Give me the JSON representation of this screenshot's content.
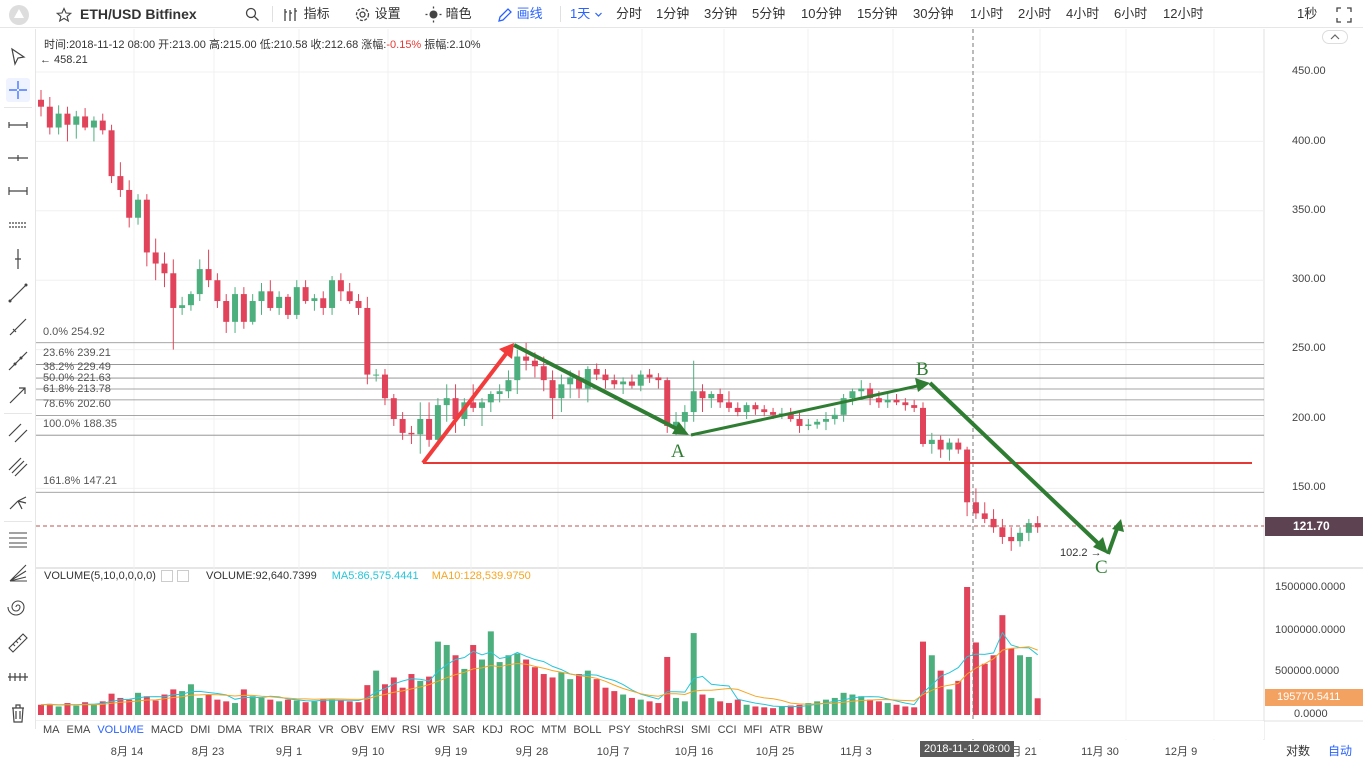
{
  "header": {
    "symbol": "ETH/USD",
    "exchange": "Bitfinex",
    "indicators_label": "指标",
    "settings_label": "设置",
    "theme_label": "暗色",
    "draw_label": "画线",
    "current_interval": "1天",
    "intervals": [
      "分时",
      "1分钟",
      "3分钟",
      "5分钟",
      "10分钟",
      "15分钟",
      "30分钟",
      "1小时",
      "2小时",
      "4小时",
      "6小时",
      "12小时"
    ],
    "right_interval": "1秒"
  },
  "ohlc": {
    "time_label": "时间:",
    "time": "2018-11-12 08:00",
    "open_label": "开:",
    "open": "213.00",
    "high_label": "高:",
    "high": "215.00",
    "low_label": "低:",
    "low": "210.58",
    "close_label": "收:",
    "close": "212.68",
    "change_label": "涨幅:",
    "change": "-0.15%",
    "amp_label": "振幅:",
    "amp": "2.10%"
  },
  "max_label": "← 458.21",
  "low_label": "102.2 →",
  "current_price": "121.70",
  "price_axis": [
    "450.00",
    "400.00",
    "350.00",
    "300.00",
    "250.00",
    "200.00",
    "150.00"
  ],
  "volume_axis": [
    "1500000.0000",
    "1000000.0000",
    "500000.0000",
    "0.0000"
  ],
  "current_volume": "195770.5411",
  "volume_info": {
    "title": "VOLUME(5,10,0,0,0,0)",
    "volume_text": "VOLUME:92,640.7399",
    "ma5_text": "MA5:86,575.4441",
    "ma10_text": "MA10:128,539.9750"
  },
  "fib_levels": [
    "0.0% 254.92",
    "23.6% 239.21",
    "38.2% 229.49",
    "50.0% 221.63",
    "61.8% 213.78",
    "78.6% 202.60",
    "100.0% 188.35",
    "161.8% 147.21"
  ],
  "wave_labels": [
    "A",
    "B",
    "C"
  ],
  "indicator_tabs": [
    "MA",
    "EMA",
    "VOLUME",
    "MACD",
    "DMI",
    "DMA",
    "TRIX",
    "BRAR",
    "VR",
    "OBV",
    "EMV",
    "RSI",
    "WR",
    "SAR",
    "KDJ",
    "ROC",
    "MTM",
    "BOLL",
    "PSY",
    "StochRSI",
    "SMI",
    "CCI",
    "MFI",
    "ATR",
    "BBW"
  ],
  "selected_indicator": "VOLUME",
  "time_axis": [
    "8月 14",
    "8月 23",
    "9月 1",
    "9月 10",
    "9月 19",
    "9月 28",
    "10月 7",
    "10月 16",
    "10月 25",
    "11月 3",
    "11月 21",
    "11月 30",
    "12月 9"
  ],
  "crosshair_date": "2018-11-12 08:00",
  "log_label": "对数",
  "auto_label": "自动",
  "colors": {
    "up": "#4caf7d",
    "down": "#e0435a",
    "accent": "#2962ff",
    "wave": "#2e7d32",
    "impulse": "#f23c3c",
    "ma5": "#26c6da",
    "ma10": "#f5a623"
  },
  "chart_data": {
    "type": "candlestick",
    "ylim": [
      90,
      470
    ],
    "candles": [
      [
        430,
        437,
        418,
        425
      ],
      [
        425,
        432,
        405,
        410
      ],
      [
        410,
        426,
        405,
        420
      ],
      [
        420,
        425,
        400,
        412
      ],
      [
        412,
        422,
        402,
        418
      ],
      [
        418,
        424,
        408,
        410
      ],
      [
        410,
        418,
        400,
        415
      ],
      [
        415,
        420,
        405,
        408
      ],
      [
        408,
        412,
        370,
        375
      ],
      [
        375,
        385,
        360,
        365
      ],
      [
        365,
        372,
        338,
        345
      ],
      [
        345,
        362,
        340,
        358
      ],
      [
        358,
        362,
        310,
        320
      ],
      [
        320,
        330,
        300,
        312
      ],
      [
        312,
        320,
        295,
        305
      ],
      [
        305,
        315,
        250,
        280
      ],
      [
        280,
        288,
        275,
        282
      ],
      [
        282,
        292,
        278,
        290
      ],
      [
        290,
        315,
        285,
        308
      ],
      [
        308,
        322,
        295,
        300
      ],
      [
        300,
        305,
        280,
        285
      ],
      [
        285,
        290,
        262,
        270
      ],
      [
        270,
        295,
        262,
        290
      ],
      [
        290,
        295,
        265,
        270
      ],
      [
        270,
        290,
        268,
        285
      ],
      [
        285,
        298,
        275,
        292
      ],
      [
        292,
        300,
        278,
        280
      ],
      [
        280,
        292,
        275,
        288
      ],
      [
        288,
        290,
        272,
        275
      ],
      [
        275,
        300,
        272,
        295
      ],
      [
        295,
        300,
        283,
        285
      ],
      [
        285,
        290,
        278,
        287
      ],
      [
        287,
        292,
        275,
        280
      ],
      [
        280,
        303,
        275,
        300
      ],
      [
        300,
        305,
        285,
        292
      ],
      [
        292,
        298,
        283,
        285
      ],
      [
        285,
        290,
        275,
        280
      ],
      [
        280,
        288,
        225,
        232
      ],
      [
        232,
        236,
        227,
        232
      ],
      [
        232,
        236,
        210,
        215
      ],
      [
        215,
        218,
        195,
        200
      ],
      [
        200,
        205,
        185,
        190
      ],
      [
        190,
        195,
        182,
        189
      ],
      [
        189,
        212,
        175,
        200
      ],
      [
        200,
        212,
        180,
        185
      ],
      [
        185,
        215,
        180,
        210
      ],
      [
        210,
        225,
        198,
        215
      ],
      [
        215,
        225,
        190,
        200
      ],
      [
        200,
        215,
        195,
        212
      ],
      [
        212,
        225,
        205,
        208
      ],
      [
        208,
        215,
        195,
        212
      ],
      [
        212,
        220,
        205,
        218
      ],
      [
        218,
        225,
        212,
        220
      ],
      [
        220,
        235,
        215,
        228
      ],
      [
        228,
        250,
        218,
        245
      ],
      [
        245,
        255,
        235,
        242
      ],
      [
        242,
        248,
        230,
        238
      ],
      [
        238,
        245,
        220,
        228
      ],
      [
        228,
        235,
        200,
        215
      ],
      [
        215,
        232,
        205,
        225
      ],
      [
        225,
        235,
        215,
        230
      ],
      [
        230,
        235,
        215,
        222
      ],
      [
        222,
        238,
        212,
        236
      ],
      [
        236,
        240,
        228,
        232
      ],
      [
        232,
        236,
        222,
        228
      ],
      [
        228,
        232,
        222,
        225
      ],
      [
        225,
        230,
        218,
        227
      ],
      [
        227,
        232,
        222,
        224
      ],
      [
        224,
        235,
        220,
        232
      ],
      [
        232,
        236,
        226,
        230
      ],
      [
        230,
        233,
        222,
        228
      ],
      [
        228,
        230,
        190,
        195
      ],
      [
        195,
        205,
        188,
        198
      ],
      [
        198,
        210,
        192,
        205
      ],
      [
        205,
        242,
        198,
        220
      ],
      [
        220,
        225,
        205,
        215
      ],
      [
        215,
        220,
        208,
        218
      ],
      [
        218,
        222,
        208,
        212
      ],
      [
        212,
        220,
        205,
        208
      ],
      [
        208,
        212,
        202,
        205
      ],
      [
        205,
        212,
        200,
        210
      ],
      [
        210,
        212,
        203,
        207
      ],
      [
        207,
        210,
        202,
        205
      ],
      [
        205,
        208,
        200,
        203
      ],
      [
        203,
        208,
        200,
        204
      ],
      [
        204,
        208,
        198,
        200
      ],
      [
        200,
        205,
        190,
        195
      ],
      [
        195,
        200,
        192,
        196
      ],
      [
        196,
        200,
        193,
        198
      ],
      [
        198,
        205,
        192,
        200
      ],
      [
        200,
        208,
        196,
        203
      ],
      [
        203,
        218,
        198,
        215
      ],
      [
        215,
        222,
        210,
        220
      ],
      [
        220,
        228,
        215,
        222
      ],
      [
        222,
        226,
        210,
        215
      ],
      [
        215,
        220,
        208,
        212
      ],
      [
        212,
        218,
        208,
        214
      ],
      [
        214,
        218,
        210,
        212
      ],
      [
        212,
        215,
        206,
        210
      ],
      [
        210,
        214,
        205,
        208
      ],
      [
        208,
        212,
        180,
        182
      ],
      [
        182,
        190,
        175,
        185
      ],
      [
        185,
        188,
        172,
        178
      ],
      [
        178,
        186,
        170,
        183
      ],
      [
        183,
        186,
        175,
        178
      ],
      [
        178,
        180,
        130,
        140
      ],
      [
        140,
        150,
        128,
        132
      ],
      [
        132,
        140,
        125,
        128
      ],
      [
        128,
        135,
        118,
        122
      ],
      [
        122,
        128,
        110,
        115
      ],
      [
        115,
        122,
        105,
        112
      ],
      [
        112,
        122,
        108,
        118
      ],
      [
        118,
        128,
        112,
        125
      ],
      [
        125,
        130,
        118,
        122
      ]
    ],
    "volume": [
      120000,
      130000,
      100000,
      140000,
      110000,
      150000,
      130000,
      160000,
      250000,
      200000,
      180000,
      260000,
      220000,
      170000,
      240000,
      300000,
      280000,
      360000,
      200000,
      240000,
      180000,
      160000,
      140000,
      300000,
      220000,
      200000,
      180000,
      160000,
      180000,
      170000,
      150000,
      160000,
      190000,
      180000,
      170000,
      160000,
      150000,
      350000,
      520000,
      360000,
      440000,
      320000,
      480000,
      400000,
      450000,
      860000,
      820000,
      700000,
      540000,
      820000,
      650000,
      980000,
      620000,
      700000,
      720000,
      650000,
      560000,
      480000,
      440000,
      500000,
      420000,
      480000,
      520000,
      420000,
      320000,
      280000,
      240000,
      200000,
      180000,
      160000,
      140000,
      680000,
      200000,
      160000,
      960000,
      240000,
      200000,
      160000,
      140000,
      180000,
      120000,
      100000,
      90000,
      80000,
      100000,
      110000,
      120000,
      140000,
      160000,
      180000,
      200000,
      260000,
      240000,
      220000,
      180000,
      160000,
      140000,
      120000,
      100000,
      90000,
      860000,
      700000,
      520000,
      300000,
      400000,
      1500000,
      850000,
      600000,
      700000,
      1170000,
      780000,
      700000,
      680000,
      195770
    ],
    "ma5": [
      120000,
      125000,
      117000,
      122000,
      120000,
      126000,
      126000,
      138000,
      158000,
      178000,
      184000,
      202000,
      214000,
      216000,
      214000,
      238000,
      242000,
      274000,
      276000,
      264000,
      252000,
      236000,
      184000,
      204000,
      208000,
      204000,
      220000,
      212000,
      188000,
      178000,
      168000,
      164000,
      172000,
      174000,
      174000,
      172000,
      170000,
      202000,
      270000,
      308000,
      364000,
      398000,
      424000,
      420000,
      398000,
      510000,
      590000,
      650000,
      674000,
      746000,
      706000,
      738000,
      662000,
      682000,
      734000,
      688000,
      650000,
      626000,
      570000,
      532000,
      480000,
      464000,
      474000,
      468000,
      432000,
      404000,
      356000,
      294000,
      244000,
      216000,
      186000,
      272000,
      272000,
      268000,
      428000,
      452000,
      360000,
      348000,
      340000,
      184000,
      160000,
      140000,
      124000,
      104000,
      100000,
      100000,
      100000,
      110000,
      126000,
      142000,
      160000,
      176000,
      200000,
      212000,
      216000,
      212000,
      188000,
      164000,
      140000,
      122000,
      262000,
      352000,
      454000,
      496000,
      556000,
      684000,
      714000,
      710000,
      728000,
      964000,
      820000,
      790000,
      786000,
      705000
    ],
    "ma10": [
      120000,
      122000,
      120000,
      120000,
      119000,
      120000,
      121000,
      124000,
      137000,
      150000,
      155000,
      164000,
      176000,
      177000,
      190000,
      205000,
      213000,
      233000,
      236000,
      240000,
      238000,
      231000,
      223000,
      232000,
      230000,
      220000,
      214000,
      204000,
      198000,
      191000,
      189000,
      185000,
      188000,
      189000,
      188000,
      185000,
      183000,
      187000,
      221000,
      240000,
      266000,
      282000,
      306000,
      328000,
      356000,
      395000,
      437000,
      474000,
      500000,
      540000,
      552000,
      580000,
      565000,
      590000,
      603000,
      595000,
      570000,
      548000,
      520000,
      500000,
      480000,
      460000,
      450000,
      430000,
      395000,
      350000,
      310000,
      280000,
      250000,
      230000,
      220000,
      250000,
      250000,
      240000,
      280000,
      290000,
      290000,
      300000,
      310000,
      300000,
      260000,
      220000,
      200000,
      190000,
      170000,
      140000,
      130000,
      125000,
      130000,
      135000,
      140000,
      150000,
      160000,
      170000,
      175000,
      180000,
      180000,
      175000,
      170000,
      165000,
      240000,
      290000,
      330000,
      350000,
      370000,
      480000,
      550000,
      600000,
      660000,
      760000,
      780000,
      790000,
      800000,
      760000
    ]
  }
}
